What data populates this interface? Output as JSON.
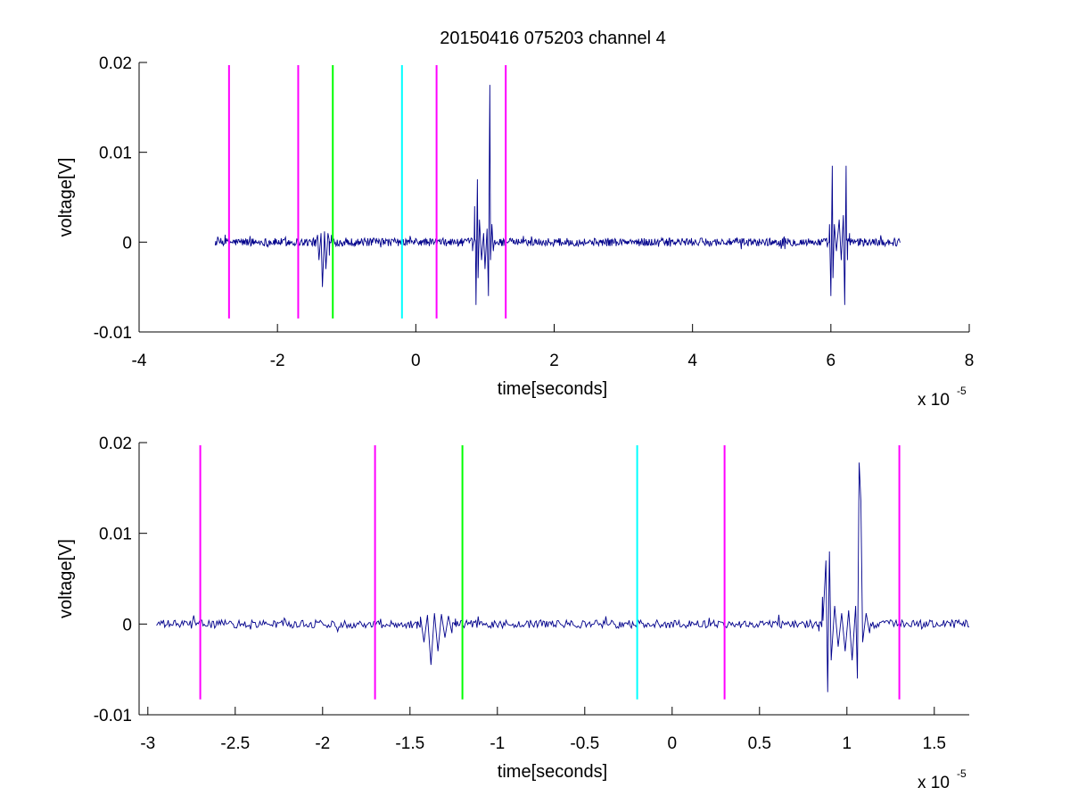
{
  "figure": {
    "title": "20150416 075203 channel 4",
    "background": "#ffffff"
  },
  "colors": {
    "signal": "#00008b",
    "magenta": "#ff00ff",
    "green": "#00ff00",
    "cyan": "#00ffff",
    "axis": "#000000"
  },
  "chart_data": [
    {
      "type": "line",
      "name": "top-panel",
      "xlabel": "time[seconds]",
      "ylabel": "voltage[V]",
      "x_exponent_base": "x 10",
      "x_exponent": "-5",
      "xlim": [
        -4,
        8
      ],
      "ylim": [
        -0.01,
        0.02
      ],
      "x_ticks": [
        -4,
        -2,
        0,
        2,
        4,
        6,
        8
      ],
      "x_tick_labels": [
        "-4",
        "-2",
        "0",
        "2",
        "4",
        "6",
        "8"
      ],
      "y_ticks": [
        -0.01,
        0,
        0.01,
        0.02
      ],
      "y_tick_labels": [
        "-0.01",
        "0",
        "0.01",
        "0.02"
      ],
      "grid": false,
      "signal_range": [
        -2.9,
        7.0
      ],
      "bursts": [
        {
          "center": -1.35,
          "width": 0.15,
          "points": [
            [
              -1.45,
              -0.0005
            ],
            [
              -1.42,
              0.0008
            ],
            [
              -1.4,
              -0.002
            ],
            [
              -1.37,
              0.001
            ],
            [
              -1.35,
              -0.005
            ],
            [
              -1.32,
              0.0012
            ],
            [
              -1.3,
              -0.003
            ],
            [
              -1.27,
              0.001
            ],
            [
              -1.25,
              -0.0015
            ],
            [
              -1.22,
              0.0008
            ],
            [
              -1.2,
              -0.001
            ]
          ]
        },
        {
          "center": 1.0,
          "width": 0.22,
          "points": [
            [
              0.82,
              -0.001
            ],
            [
              0.85,
              0.004
            ],
            [
              0.87,
              -0.007
            ],
            [
              0.89,
              0.007
            ],
            [
              0.9,
              -0.004
            ],
            [
              0.92,
              0.0025
            ],
            [
              0.95,
              -0.002
            ],
            [
              0.98,
              0.001
            ],
            [
              1.0,
              -0.003
            ],
            [
              1.03,
              0.0015
            ],
            [
              1.05,
              -0.006
            ],
            [
              1.07,
              0.0175
            ],
            [
              1.08,
              -0.002
            ],
            [
              1.1,
              0.002
            ],
            [
              1.12,
              -0.001
            ]
          ]
        },
        {
          "center": 6.1,
          "width": 0.2,
          "points": [
            [
              5.95,
              -0.0005
            ],
            [
              5.98,
              0.002
            ],
            [
              6.0,
              -0.006
            ],
            [
              6.02,
              0.0085
            ],
            [
              6.03,
              -0.004
            ],
            [
              6.05,
              0.002
            ],
            [
              6.08,
              -0.001
            ],
            [
              6.12,
              0.0025
            ],
            [
              6.15,
              -0.002
            ],
            [
              6.18,
              0.003
            ],
            [
              6.2,
              -0.007
            ],
            [
              6.22,
              0.0085
            ],
            [
              6.24,
              -0.002
            ],
            [
              6.27,
              0.001
            ]
          ]
        }
      ],
      "markers": [
        {
          "x": -2.7,
          "color": "magenta"
        },
        {
          "x": -1.7,
          "color": "magenta"
        },
        {
          "x": -1.2,
          "color": "green"
        },
        {
          "x": -0.2,
          "color": "cyan"
        },
        {
          "x": 0.3,
          "color": "magenta"
        },
        {
          "x": 1.3,
          "color": "magenta"
        }
      ],
      "marker_range": [
        -0.0085,
        0.0197
      ]
    },
    {
      "type": "line",
      "name": "bottom-panel",
      "xlabel": "time[seconds]",
      "ylabel": "voltage[V]",
      "x_exponent_base": "x 10",
      "x_exponent": "-5",
      "xlim": [
        -3.05,
        1.7
      ],
      "ylim": [
        -0.01,
        0.02
      ],
      "x_ticks": [
        -3,
        -2.5,
        -2,
        -1.5,
        -1,
        -0.5,
        0,
        0.5,
        1,
        1.5
      ],
      "x_tick_labels": [
        "-3",
        "-2.5",
        "-2",
        "-1.5",
        "-1",
        "-0.5",
        "0",
        "0.5",
        "1",
        "1.5"
      ],
      "y_ticks": [
        -0.01,
        0,
        0.01,
        0.02
      ],
      "y_tick_labels": [
        "-0.01",
        "0",
        "0.01",
        "0.02"
      ],
      "grid": false,
      "signal_range": [
        -2.95,
        1.7
      ],
      "bursts": [
        {
          "center": -1.35,
          "width": 0.15,
          "points": [
            [
              -1.46,
              -0.0005
            ],
            [
              -1.44,
              0.0008
            ],
            [
              -1.42,
              -0.002
            ],
            [
              -1.4,
              0.001
            ],
            [
              -1.38,
              -0.0045
            ],
            [
              -1.36,
              0.0012
            ],
            [
              -1.34,
              -0.003
            ],
            [
              -1.32,
              0.0011
            ],
            [
              -1.3,
              -0.0015
            ],
            [
              -1.28,
              0.0009
            ],
            [
              -1.26,
              -0.001
            ],
            [
              -1.24,
              0.0006
            ]
          ]
        },
        {
          "center": 1.0,
          "width": 0.22,
          "points": [
            [
              0.84,
              -0.0008
            ],
            [
              0.86,
              0.003
            ],
            [
              0.88,
              0.007
            ],
            [
              0.89,
              -0.0075
            ],
            [
              0.9,
              0.008
            ],
            [
              0.91,
              -0.004
            ],
            [
              0.93,
              0.002
            ],
            [
              0.95,
              -0.0025
            ],
            [
              0.97,
              0.0012
            ],
            [
              0.99,
              -0.003
            ],
            [
              1.01,
              0.0015
            ],
            [
              1.03,
              -0.004
            ],
            [
              1.05,
              0.002
            ],
            [
              1.06,
              -0.006
            ],
            [
              1.07,
              0.0178
            ],
            [
              1.08,
              0.0135
            ],
            [
              1.09,
              -0.002
            ],
            [
              1.11,
              0.0012
            ],
            [
              1.13,
              -0.001
            ]
          ]
        }
      ],
      "markers": [
        {
          "x": -2.7,
          "color": "magenta"
        },
        {
          "x": -1.7,
          "color": "magenta"
        },
        {
          "x": -1.2,
          "color": "green"
        },
        {
          "x": -0.2,
          "color": "cyan"
        },
        {
          "x": 0.3,
          "color": "magenta"
        },
        {
          "x": 1.3,
          "color": "magenta"
        }
      ],
      "marker_range": [
        -0.0083,
        0.0197
      ]
    }
  ]
}
